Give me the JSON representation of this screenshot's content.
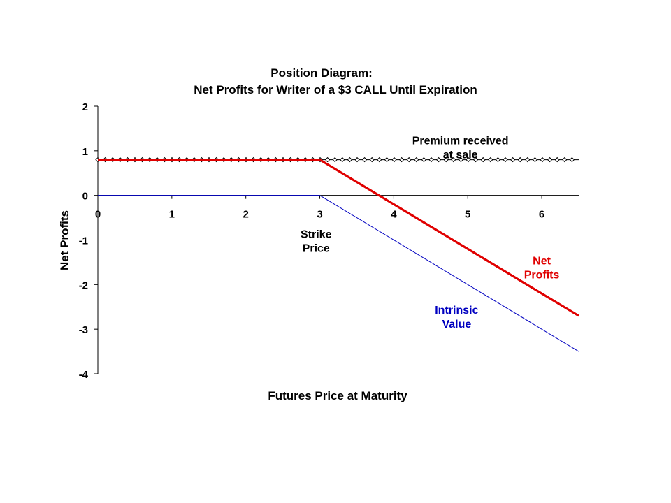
{
  "chart_data": {
    "type": "line",
    "title": [
      "Position Diagram:",
      "Net Profits for Writer of a $3 CALL Until Expiration"
    ],
    "xlabel": "Futures Price at Maturity",
    "ylabel": "Net Profits",
    "xlim": [
      0,
      6.5
    ],
    "ylim": [
      -4,
      2
    ],
    "xticks": [
      0,
      1,
      2,
      3,
      4,
      5,
      6
    ],
    "yticks": [
      2,
      1,
      0,
      -1,
      -2,
      -3,
      -4
    ],
    "grid": false,
    "series": [
      {
        "name": "Net Profits",
        "color": "#e00000",
        "style": "thick-solid",
        "x": [
          0,
          3,
          6.5
        ],
        "y": [
          0.8,
          0.8,
          -2.7
        ]
      },
      {
        "name": "Intrinsic Value",
        "color": "#0000c0",
        "style": "thin-solid",
        "x": [
          0,
          3,
          6.5
        ],
        "y": [
          0,
          0,
          -3.5
        ]
      },
      {
        "name": "Premium received at sale",
        "color": "#000000",
        "style": "dotted-markers",
        "x": [
          0,
          6.5
        ],
        "y": [
          0.8,
          0.8
        ]
      }
    ],
    "annotations": [
      {
        "id": "premium",
        "lines": [
          "Premium received",
          "at sale"
        ],
        "color": "#000000",
        "x": 4.9,
        "y": 1.15
      },
      {
        "id": "strike",
        "lines": [
          "Strike",
          "Price"
        ],
        "color": "#000000",
        "x": 2.95,
        "y": -0.95
      },
      {
        "id": "net",
        "lines": [
          "Net",
          "Profits"
        ],
        "color": "#e00000",
        "x": 6.0,
        "y": -1.55
      },
      {
        "id": "intrinsic",
        "lines": [
          "Intrinsic",
          "Value"
        ],
        "color": "#0000c0",
        "x": 4.85,
        "y": -2.65
      }
    ]
  }
}
